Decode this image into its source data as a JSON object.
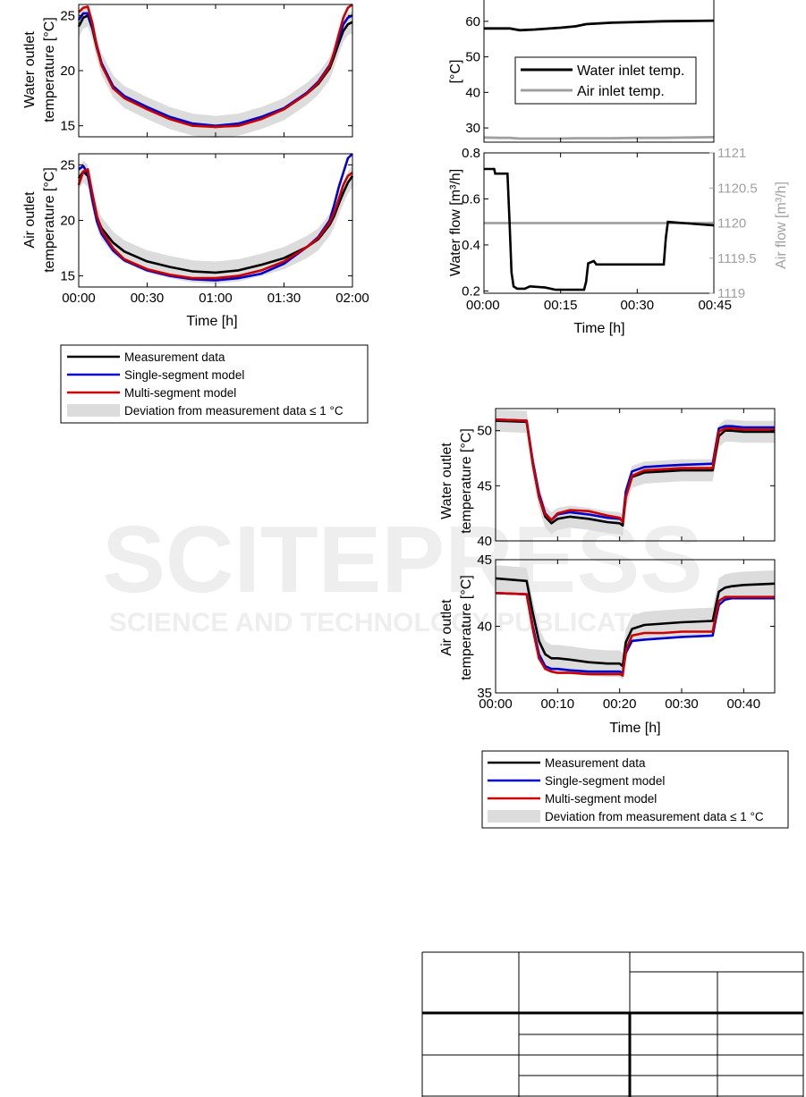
{
  "watermark": {
    "line1": "SCITEPRESS",
    "line2": "SCIENCE AND TECHNOLOGY PUBLICATIONS"
  },
  "chart_data": [
    {
      "id": "A",
      "type": "line",
      "title": "",
      "xlabel": "Time [h]",
      "x_ticks": [
        "00:00",
        "00:30",
        "01:00",
        "01:30",
        "02:00"
      ],
      "xlim": [
        0,
        120
      ],
      "panels": [
        {
          "ylabel_line1": "Water outlet",
          "ylabel_line2": "temperature [°C]",
          "ylim": [
            14,
            26
          ],
          "y_ticks": [
            "15",
            "20",
            "25"
          ],
          "x": [
            0,
            2,
            4,
            6,
            8,
            10,
            15,
            20,
            30,
            40,
            50,
            60,
            70,
            80,
            90,
            100,
            105,
            110,
            112,
            114,
            116,
            118,
            120
          ],
          "series": [
            {
              "name": "Measurement data",
              "color": "#000000",
              "values": [
                24.0,
                24.8,
                25.0,
                23.8,
                22.0,
                20.6,
                18.6,
                17.6,
                16.6,
                15.7,
                15.1,
                14.9,
                15.1,
                15.7,
                16.5,
                17.9,
                18.8,
                20.2,
                21.3,
                22.5,
                23.6,
                24.2,
                24.4
              ]
            },
            {
              "name": "Single-segment model",
              "color": "#0000cc",
              "values": [
                24.6,
                25.2,
                25.2,
                24.0,
                22.2,
                20.7,
                18.6,
                17.7,
                16.7,
                15.8,
                15.2,
                15.0,
                15.2,
                15.8,
                16.6,
                18.0,
                19.0,
                20.5,
                21.6,
                22.9,
                24.2,
                24.8,
                25.0
              ]
            },
            {
              "name": "Multi-segment model",
              "color": "#cc0000",
              "values": [
                25.3,
                25.7,
                25.8,
                24.3,
                22.1,
                20.5,
                18.4,
                17.5,
                16.5,
                15.6,
                15.0,
                14.9,
                15.0,
                15.6,
                16.5,
                17.9,
                18.9,
                20.4,
                21.7,
                23.3,
                24.8,
                25.7,
                26.0
              ]
            }
          ]
        },
        {
          "ylabel_line1": "Air outlet",
          "ylabel_line2": "temperature [°C]",
          "ylim": [
            14,
            26
          ],
          "y_ticks": [
            "15",
            "20",
            "25"
          ],
          "x": [
            0,
            2,
            4,
            6,
            8,
            10,
            15,
            20,
            30,
            40,
            50,
            60,
            70,
            80,
            90,
            100,
            105,
            110,
            112,
            114,
            116,
            118,
            120
          ],
          "series": [
            {
              "name": "Measurement data",
              "color": "#000000",
              "values": [
                23.8,
                24.4,
                24.0,
                22.0,
                20.3,
                19.3,
                18.0,
                17.2,
                16.3,
                15.8,
                15.4,
                15.3,
                15.5,
                16.0,
                16.6,
                17.6,
                18.3,
                19.6,
                20.4,
                21.5,
                22.5,
                23.4,
                24.0
              ]
            },
            {
              "name": "Single-segment model",
              "color": "#0000cc",
              "values": [
                24.6,
                24.9,
                24.2,
                21.8,
                19.9,
                18.8,
                17.3,
                16.4,
                15.5,
                15.0,
                14.7,
                14.6,
                14.8,
                15.2,
                16.1,
                17.6,
                18.5,
                20.0,
                21.4,
                23.0,
                24.3,
                25.6,
                26.0
              ]
            },
            {
              "name": "Multi-segment model",
              "color": "#cc0000",
              "values": [
                23.2,
                24.4,
                24.6,
                22.4,
                20.4,
                19.1,
                17.5,
                16.5,
                15.6,
                15.1,
                14.8,
                14.8,
                15.0,
                15.5,
                16.3,
                17.6,
                18.4,
                19.8,
                20.7,
                21.9,
                23.2,
                24.0,
                24.3
              ]
            }
          ]
        }
      ],
      "legend": [
        "Measurement data",
        "Single-segment model",
        "Multi-segment model",
        "Deviation from measurement data ≤ 1 °C"
      ]
    },
    {
      "id": "B",
      "type": "line",
      "title": "",
      "xlabel": "Time [h]",
      "x_ticks": [
        "00:00",
        "00:15",
        "00:30",
        "00:45"
      ],
      "xlim": [
        0,
        45
      ],
      "panels": [
        {
          "ylabel": "[°C]",
          "ylim": [
            26,
            66
          ],
          "y_ticks": [
            "30",
            "40",
            "50",
            "60"
          ],
          "x": [
            0,
            3,
            5,
            7,
            10,
            15,
            18,
            20,
            25,
            30,
            35,
            40,
            45
          ],
          "series": [
            {
              "name": "Water inlet temp.",
              "color": "#000000",
              "values": [
                58.0,
                58.0,
                58.0,
                57.5,
                57.7,
                58.2,
                58.6,
                59.2,
                59.6,
                59.8,
                60.0,
                60.1,
                60.2
              ]
            },
            {
              "name": "Air inlet temp.",
              "color": "#a0a0a0",
              "values": [
                27.3,
                27.2,
                27.2,
                27.0,
                27.0,
                27.0,
                27.1,
                27.1,
                27.1,
                27.2,
                27.2,
                27.3,
                27.4
              ]
            }
          ],
          "legend": [
            "Water inlet temp.",
            "Air inlet temp."
          ]
        },
        {
          "ylabel_left": "Water flow [m³/h]",
          "ylabel_right": "Air flow [m³/h]",
          "ylim_left": [
            0.19,
            0.8
          ],
          "ylim_right": [
            1119,
            1121
          ],
          "y_ticks_left": [
            "0.2",
            "0.4",
            "0.6",
            "0.8"
          ],
          "y_ticks_right": [
            "1119",
            "1119.5",
            "1120",
            "1120.5",
            "1121"
          ],
          "series": [
            {
              "name": "Water flow",
              "axis": "left",
              "color": "#000000",
              "x": [
                0,
                2,
                2.2,
                4.6,
                5,
                5.4,
                5.8,
                6.5,
                8,
                9,
                12,
                14,
                19.6,
                20,
                20.4,
                21.5,
                22,
                30,
                35.2,
                35.6,
                36,
                45
              ],
              "values": [
                0.73,
                0.73,
                0.71,
                0.71,
                0.5,
                0.28,
                0.22,
                0.21,
                0.21,
                0.22,
                0.215,
                0.205,
                0.205,
                0.24,
                0.32,
                0.33,
                0.315,
                0.315,
                0.315,
                0.43,
                0.5,
                0.485
              ]
            },
            {
              "name": "Air flow",
              "axis": "right",
              "color": "#a0a0a0",
              "x": [
                0,
                45
              ],
              "values": [
                1120,
                1120
              ]
            }
          ]
        }
      ]
    },
    {
      "id": "C",
      "type": "line",
      "title": "",
      "xlabel": "Time [h]",
      "x_ticks": [
        "00:00",
        "00:10",
        "00:20",
        "00:30",
        "00:40"
      ],
      "xlim": [
        0,
        45
      ],
      "panels": [
        {
          "ylabel_line1": "Water outlet",
          "ylabel_line2": "temperature [°C]",
          "ylim": [
            40,
            52
          ],
          "y_ticks": [
            "40",
            "45",
            "50"
          ],
          "x": [
            0,
            5,
            6,
            7,
            8,
            9,
            10,
            12,
            15,
            18,
            20,
            20.5,
            21,
            22,
            24,
            27,
            30,
            35,
            35.5,
            36,
            37,
            38,
            40,
            45
          ],
          "series": [
            {
              "name": "Measurement data",
              "color": "#000000",
              "values": [
                50.9,
                50.8,
                47.0,
                44.0,
                42.2,
                41.6,
                42.0,
                42.2,
                42.0,
                41.7,
                41.6,
                41.4,
                44.0,
                45.8,
                46.2,
                46.3,
                46.4,
                46.4,
                48.0,
                49.5,
                50.0,
                50.0,
                49.9,
                49.9
              ]
            },
            {
              "name": "Single-segment model",
              "color": "#0000cc",
              "values": [
                51.0,
                50.9,
                47.2,
                44.3,
                42.5,
                41.9,
                42.4,
                42.6,
                42.4,
                42.1,
                42.0,
                41.8,
                44.5,
                46.3,
                46.7,
                46.8,
                46.9,
                47.0,
                48.6,
                50.2,
                50.4,
                50.4,
                50.3,
                50.3
              ]
            },
            {
              "name": "Multi-segment model",
              "color": "#cc0000",
              "values": [
                51.0,
                50.9,
                47.0,
                44.0,
                42.4,
                41.9,
                42.5,
                42.8,
                42.7,
                42.3,
                42.1,
                41.7,
                44.0,
                45.9,
                46.4,
                46.5,
                46.6,
                46.6,
                48.4,
                49.9,
                50.2,
                50.2,
                50.1,
                50.1
              ]
            }
          ]
        },
        {
          "ylabel_line1": "Air outlet",
          "ylabel_line2": "temperature [°C]",
          "ylim": [
            35,
            45
          ],
          "y_ticks": [
            "35",
            "40",
            "45"
          ],
          "x": [
            0,
            5,
            6,
            7,
            8,
            9,
            10,
            12,
            15,
            18,
            20,
            20.5,
            21,
            22,
            24,
            27,
            30,
            35,
            35.5,
            36,
            37,
            38,
            40,
            45
          ],
          "series": [
            {
              "name": "Measurement data",
              "color": "#000000",
              "values": [
                43.6,
                43.4,
                41.0,
                38.9,
                37.9,
                37.6,
                37.6,
                37.5,
                37.3,
                37.2,
                37.2,
                37.0,
                38.8,
                39.8,
                40.1,
                40.2,
                40.3,
                40.4,
                41.5,
                42.6,
                42.9,
                43.0,
                43.1,
                43.2
              ]
            },
            {
              "name": "Single-segment model",
              "color": "#0000cc",
              "values": [
                42.5,
                42.4,
                40.0,
                37.9,
                37.0,
                36.8,
                36.8,
                36.7,
                36.6,
                36.6,
                36.6,
                36.5,
                38.0,
                38.9,
                39.0,
                39.1,
                39.2,
                39.3,
                40.5,
                41.6,
                42.0,
                42.1,
                42.1,
                42.1
              ]
            },
            {
              "name": "Multi-segment model",
              "color": "#cc0000",
              "values": [
                42.5,
                42.4,
                39.8,
                37.6,
                36.8,
                36.6,
                36.5,
                36.5,
                36.4,
                36.4,
                36.4,
                36.3,
                38.2,
                39.3,
                39.5,
                39.5,
                39.6,
                39.6,
                40.8,
                41.9,
                42.2,
                42.2,
                42.2,
                42.2
              ]
            }
          ]
        }
      ],
      "legend": [
        "Measurement data",
        "Single-segment model",
        "Multi-segment model",
        "Deviation from measurement data ≤ 1 °C"
      ]
    }
  ],
  "table": {
    "caption": "",
    "rows": 6,
    "columns": 4
  }
}
